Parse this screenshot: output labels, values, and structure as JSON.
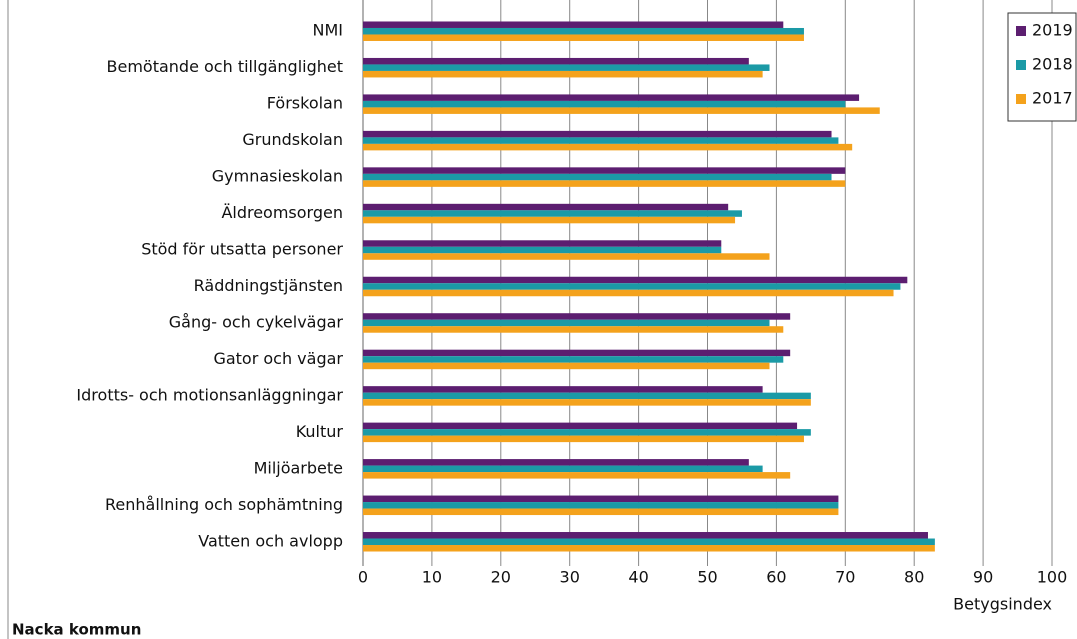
{
  "chart_data": {
    "type": "hbar",
    "categories": [
      "NMI",
      "Bemötande och tillgänglighet",
      "Förskolan",
      "Grundskolan",
      "Gymnasieskolan",
      "Äldreomsorgen",
      "Stöd för utsatta personer",
      "Räddningstjänsten",
      "Gång- och cykelvägar",
      "Gator och vägar",
      "Idrotts- och motionsanläggningar",
      "Kultur",
      "Miljöarbete",
      "Renhållning och sophämtning",
      "Vatten och avlopp"
    ],
    "series": [
      {
        "name": "2019",
        "color": "#5c1e70",
        "values": [
          61,
          56,
          72,
          68,
          70,
          53,
          52,
          79,
          62,
          62,
          58,
          63,
          56,
          69,
          82
        ]
      },
      {
        "name": "2018",
        "color": "#1b9aa6",
        "values": [
          64,
          59,
          70,
          69,
          68,
          55,
          52,
          78,
          59,
          61,
          65,
          65,
          58,
          69,
          83
        ]
      },
      {
        "name": "2017",
        "color": "#f4a21c",
        "values": [
          64,
          58,
          75,
          71,
          70,
          54,
          59,
          77,
          61,
          59,
          65,
          64,
          62,
          69,
          83
        ]
      }
    ],
    "xlabel": "Betygsindex",
    "xlim": [
      0,
      100
    ],
    "xticks": [
      0,
      10,
      20,
      30,
      40,
      50,
      60,
      70,
      80,
      90,
      100
    ],
    "grid": true,
    "legend": "top-right",
    "footer": "Nacka kommun"
  }
}
